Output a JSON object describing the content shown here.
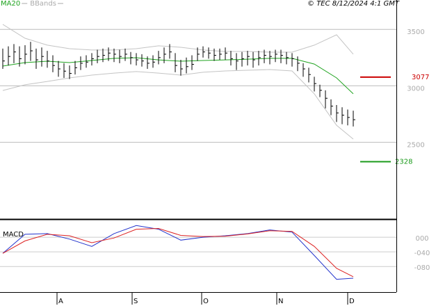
{
  "header": {
    "copyright": "© TEC 8/12/2024 4:1 GMT"
  },
  "chart_data": [
    {
      "type": "ohlc",
      "color": "#000000",
      "x": [
        0,
        1,
        2,
        3,
        4,
        5,
        6,
        7,
        8,
        9,
        10,
        11,
        12,
        13,
        14,
        15,
        16,
        17,
        18,
        19,
        20,
        21,
        22,
        23,
        24,
        25,
        26,
        27,
        28,
        29,
        30,
        31,
        32,
        33,
        34,
        35,
        36,
        37,
        38,
        39,
        40,
        41,
        42,
        43,
        44,
        45,
        46,
        47,
        48,
        49,
        50,
        51,
        52,
        53,
        54,
        55,
        56,
        57,
        58,
        59,
        60,
        61,
        62,
        63
      ],
      "high": [
        3330,
        3350,
        3370,
        3350,
        3360,
        3390,
        3330,
        3340,
        3310,
        3270,
        3220,
        3200,
        3180,
        3220,
        3260,
        3270,
        3290,
        3320,
        3330,
        3340,
        3330,
        3320,
        3330,
        3300,
        3290,
        3280,
        3260,
        3270,
        3310,
        3340,
        3370,
        3290,
        3230,
        3250,
        3270,
        3340,
        3350,
        3340,
        3330,
        3330,
        3340,
        3310,
        3290,
        3300,
        3310,
        3300,
        3310,
        3320,
        3310,
        3320,
        3320,
        3300,
        3290,
        3260,
        3200,
        3160,
        3080,
        3010,
        2960,
        2880,
        2830,
        2810,
        2790,
        2780
      ],
      "low": [
        3150,
        3180,
        3200,
        3170,
        3190,
        3220,
        3150,
        3170,
        3160,
        3120,
        3080,
        3070,
        3060,
        3100,
        3140,
        3160,
        3180,
        3200,
        3210,
        3220,
        3210,
        3200,
        3220,
        3190,
        3180,
        3170,
        3150,
        3160,
        3190,
        3200,
        3240,
        3120,
        3090,
        3110,
        3140,
        3220,
        3250,
        3240,
        3220,
        3230,
        3230,
        3180,
        3140,
        3170,
        3180,
        3160,
        3180,
        3200,
        3190,
        3210,
        3200,
        3190,
        3170,
        3130,
        3080,
        3030,
        2950,
        2900,
        2800,
        2740,
        2680,
        2660,
        2650,
        2640
      ],
      "close": [
        3220,
        3260,
        3300,
        3240,
        3280,
        3310,
        3230,
        3260,
        3220,
        3180,
        3150,
        3130,
        3110,
        3160,
        3200,
        3210,
        3240,
        3260,
        3270,
        3290,
        3280,
        3260,
        3280,
        3250,
        3230,
        3220,
        3200,
        3210,
        3250,
        3280,
        3300,
        3180,
        3150,
        3170,
        3190,
        3280,
        3300,
        3290,
        3270,
        3280,
        3290,
        3240,
        3220,
        3240,
        3260,
        3230,
        3250,
        3270,
        3260,
        3280,
        3270,
        3250,
        3240,
        3200,
        3150,
        3100,
        3020,
        2960,
        2890,
        2820,
        2760,
        2740,
        2720,
        2700
      ],
      "overlay_x": [
        0,
        4,
        8,
        12,
        16,
        20,
        24,
        28,
        32,
        36,
        40,
        44,
        48,
        52,
        56,
        60,
        63
      ],
      "overlays": [
        {
          "name": "MA20",
          "color": "#1fa31f",
          "values": [
            3175,
            3206,
            3218,
            3206,
            3224,
            3243,
            3249,
            3230,
            3218,
            3224,
            3230,
            3236,
            3243,
            3243,
            3193,
            3070,
            2929
          ]
        },
        {
          "name": "BBands",
          "color": "#c4c4c4",
          "upper": [
            3544,
            3421,
            3360,
            3329,
            3317,
            3317,
            3329,
            3354,
            3341,
            3317,
            3304,
            3304,
            3298,
            3298,
            3360,
            3452,
            3280
          ],
          "lower": [
            2959,
            3009,
            3039,
            3070,
            3095,
            3113,
            3126,
            3113,
            3095,
            3120,
            3132,
            3138,
            3144,
            3132,
            2929,
            2651,
            2528
          ]
        }
      ],
      "levels": [
        {
          "value": 3077,
          "color": "#cc0000"
        },
        {
          "value": 2328,
          "color": "#1a9a1a"
        }
      ],
      "xlim": [
        -0.5,
        70.75
      ],
      "ylim": [
        1820,
        3760
      ],
      "yticks": [
        2500,
        3000,
        3500
      ],
      "grid": true
    },
    {
      "type": "line",
      "title": "MACD",
      "x": [
        0,
        4,
        8,
        12,
        16,
        20,
        24,
        28,
        32,
        36,
        40,
        44,
        48,
        52,
        56,
        60,
        63
      ],
      "series": [
        {
          "color": "#2233cc",
          "values": [
            -44,
            8,
            10,
            -5,
            -25,
            10,
            32,
            22,
            -8,
            0,
            4,
            10,
            20,
            14,
            -50,
            -115,
            -112
          ]
        },
        {
          "color": "#dd2222",
          "values": [
            -44,
            -10,
            8,
            4,
            -15,
            -2,
            22,
            24,
            5,
            2,
            3,
            9,
            18,
            16,
            -25,
            -85,
            -108
          ]
        }
      ],
      "xlim": [
        -0.5,
        70.75
      ],
      "ylim": [
        -150,
        44
      ],
      "yticks": [
        {
          "value": 0,
          "label": "000"
        },
        {
          "value": -40,
          "label": "-040"
        },
        {
          "value": -80,
          "label": "-080"
        }
      ],
      "xticks": [
        {
          "value": 9.75,
          "label": "A"
        },
        {
          "value": 23.25,
          "label": "S"
        },
        {
          "value": 35.75,
          "label": "O"
        },
        {
          "value": 49.25,
          "label": "N"
        },
        {
          "value": 62,
          "label": "D"
        }
      ],
      "grid": true
    }
  ]
}
